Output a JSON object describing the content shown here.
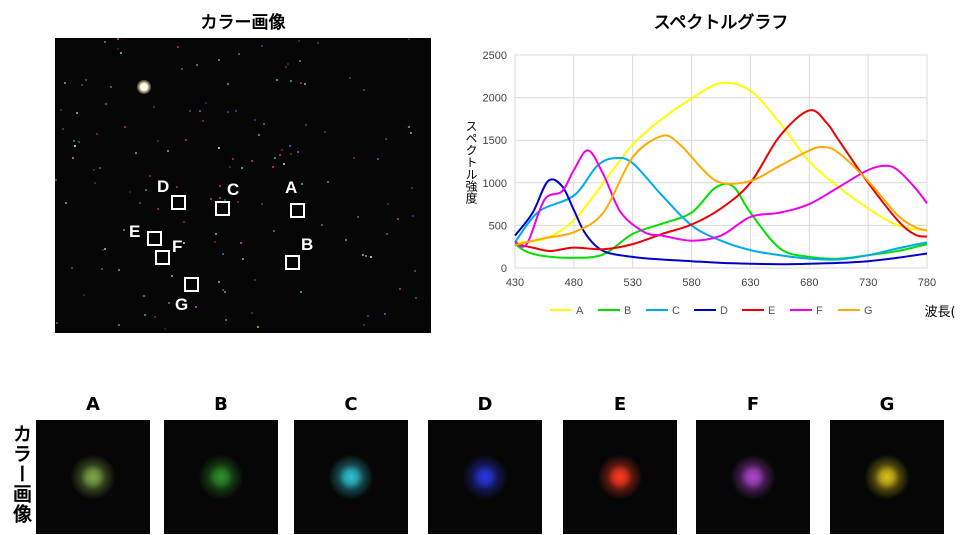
{
  "left_panel": {
    "title": "カラー画像",
    "markers": [
      "A",
      "B",
      "C",
      "D",
      "E",
      "F",
      "G"
    ]
  },
  "thumbnails": {
    "side_label": "カラー画像",
    "items": [
      {
        "label": "A",
        "color": "#7fa84a"
      },
      {
        "label": "B",
        "color": "#2f8f2a"
      },
      {
        "label": "C",
        "color": "#2fc3d4"
      },
      {
        "label": "D",
        "color": "#2a36e0"
      },
      {
        "label": "E",
        "color": "#ff3a1e"
      },
      {
        "label": "F",
        "color": "#b046d0"
      },
      {
        "label": "G",
        "color": "#d8c21a"
      }
    ]
  },
  "chart_data": {
    "type": "line",
    "title": "スペクトルグラフ",
    "xlabel": "波長(nm)",
    "ylabel": "スペクトル強度",
    "xlim": [
      430,
      780
    ],
    "ylim": [
      0,
      2500
    ],
    "xticks": [
      430,
      480,
      530,
      580,
      630,
      680,
      730,
      780
    ],
    "yticks": [
      0,
      500,
      1000,
      1500,
      2000,
      2500
    ],
    "grid": true,
    "legend_position": "bottom",
    "series": [
      {
        "name": "A",
        "color": "#ffff00",
        "x": [
          430,
          455,
          480,
          505,
          530,
          555,
          580,
          605,
          630,
          655,
          680,
          705,
          730,
          755,
          780
        ],
        "y": [
          300,
          340,
          560,
          1000,
          1450,
          1750,
          1990,
          2170,
          2080,
          1700,
          1250,
          950,
          700,
          500,
          440
        ]
      },
      {
        "name": "B",
        "color": "#00e000",
        "x": [
          430,
          440,
          455,
          480,
          505,
          530,
          555,
          580,
          600,
          615,
          630,
          655,
          680,
          705,
          730,
          755,
          780
        ],
        "y": [
          280,
          190,
          140,
          120,
          160,
          400,
          520,
          650,
          940,
          960,
          650,
          230,
          130,
          110,
          150,
          200,
          280
        ]
      },
      {
        "name": "C",
        "color": "#00aaee",
        "x": [
          430,
          450,
          480,
          500,
          515,
          530,
          555,
          580,
          605,
          630,
          655,
          680,
          705,
          730,
          755,
          780
        ],
        "y": [
          300,
          660,
          850,
          1200,
          1290,
          1230,
          850,
          500,
          320,
          210,
          150,
          110,
          100,
          150,
          230,
          300
        ]
      },
      {
        "name": "D",
        "color": "#0000cc",
        "x": [
          430,
          445,
          458,
          470,
          480,
          490,
          505,
          530,
          555,
          580,
          605,
          630,
          655,
          680,
          705,
          730,
          755,
          780
        ],
        "y": [
          380,
          650,
          1020,
          960,
          680,
          400,
          200,
          130,
          100,
          80,
          60,
          50,
          45,
          50,
          60,
          80,
          120,
          170
        ]
      },
      {
        "name": "E",
        "color": "#ee0000",
        "x": [
          430,
          445,
          460,
          480,
          505,
          530,
          555,
          580,
          605,
          630,
          655,
          680,
          695,
          705,
          730,
          755,
          770,
          780
        ],
        "y": [
          280,
          240,
          200,
          240,
          220,
          280,
          400,
          510,
          700,
          1000,
          1550,
          1850,
          1700,
          1500,
          1000,
          560,
          390,
          370
        ]
      },
      {
        "name": "F",
        "color": "#ee00ee",
        "x": [
          430,
          440,
          455,
          470,
          480,
          492,
          505,
          520,
          540,
          555,
          580,
          605,
          630,
          655,
          680,
          705,
          730,
          745,
          755,
          770,
          780
        ],
        "y": [
          310,
          280,
          800,
          900,
          1150,
          1380,
          1100,
          650,
          420,
          380,
          320,
          380,
          600,
          650,
          750,
          950,
          1150,
          1200,
          1150,
          940,
          760
        ]
      },
      {
        "name": "G",
        "color": "#ffaa00",
        "x": [
          430,
          455,
          480,
          505,
          530,
          555,
          570,
          590,
          605,
          630,
          655,
          680,
          692,
          705,
          730,
          755,
          770,
          780
        ],
        "y": [
          270,
          350,
          420,
          650,
          1300,
          1550,
          1450,
          1150,
          1000,
          1020,
          1200,
          1380,
          1420,
          1350,
          1020,
          620,
          480,
          440
        ]
      }
    ]
  }
}
